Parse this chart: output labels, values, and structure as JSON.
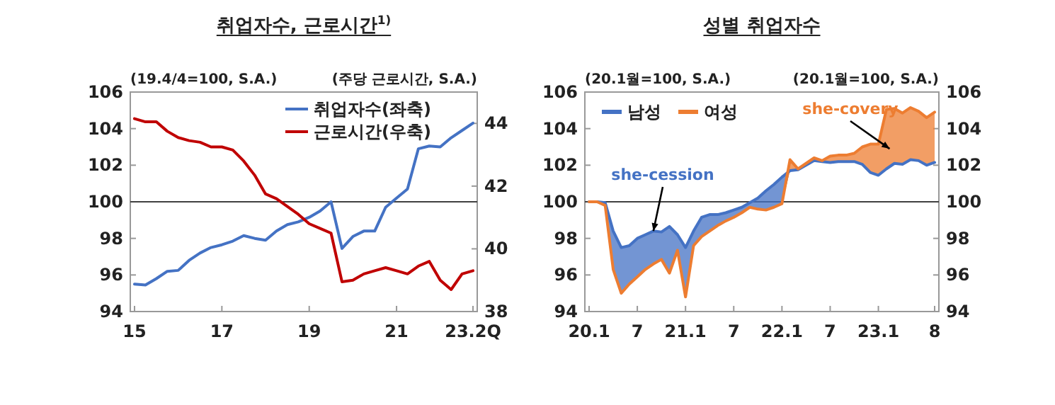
{
  "chart_data": [
    {
      "type": "line",
      "title": "취업자수, 근로시간$^{1)}$",
      "ylabel": "(19.4/4=100, S.A.)",
      "y2label": "(주당 근로시간, S.A.)",
      "categories": [
        "15",
        null,
        null,
        null,
        null,
        null,
        null,
        null,
        "17",
        null,
        null,
        null,
        null,
        null,
        null,
        null,
        "19",
        null,
        null,
        null,
        null,
        null,
        null,
        null,
        "21",
        null,
        null,
        null,
        null,
        null,
        null,
        "23.2Q"
      ],
      "ylim": [
        94,
        106
      ],
      "yticks": [
        94,
        96,
        98,
        100,
        102,
        104,
        106
      ],
      "y2lim": [
        38,
        45
      ],
      "y2ticks": [
        38,
        40,
        42,
        44
      ],
      "ref_lines": [
        {
          "axis": "y",
          "value": 100,
          "color": "#404040"
        }
      ],
      "legend": "top",
      "grid": false,
      "series": [
        {
          "name": "취업자수(좌축)",
          "color": "#4472c4",
          "values": [
            95.5,
            95.45,
            95.8,
            96.2,
            96.25,
            96.8,
            97.2,
            97.5,
            97.65,
            97.85,
            98.15,
            98.0,
            97.9,
            98.4,
            98.75,
            98.9,
            99.15,
            99.5,
            100.0,
            97.45,
            98.1,
            98.4,
            98.4,
            99.7,
            100.2,
            100.7,
            102.9,
            103.05,
            103.0,
            103.5,
            103.9,
            104.3
          ]
        },
        {
          "name": "근로시간(우축)",
          "color": "#c00000",
          "axis": "y2",
          "values": [
            44.15,
            44.05,
            44.05,
            43.75,
            43.55,
            43.45,
            43.4,
            43.25,
            43.25,
            43.15,
            42.8,
            42.35,
            41.75,
            41.6,
            41.35,
            41.1,
            40.8,
            40.65,
            40.5,
            38.95,
            39.0,
            39.2,
            39.3,
            39.4,
            39.3,
            39.2,
            39.45,
            39.6,
            39.0,
            38.7,
            39.2,
            39.3
          ]
        }
      ]
    },
    {
      "type": "line",
      "title": "성별 취업자수",
      "ylabel": "(20.1월=100, S.A.)",
      "y2label": "(20.1월=100, S.A.)",
      "categories": [
        "20.1",
        null,
        null,
        null,
        null,
        null,
        "7",
        null,
        null,
        null,
        null,
        null,
        "21.1",
        null,
        null,
        null,
        null,
        null,
        "7",
        null,
        null,
        null,
        null,
        null,
        "22.1",
        null,
        null,
        null,
        null,
        null,
        "7",
        null,
        null,
        null,
        null,
        null,
        "23.1",
        null,
        null,
        null,
        null,
        null,
        null,
        "8"
      ],
      "ylim": [
        94,
        106
      ],
      "yticks": [
        94,
        96,
        98,
        100,
        102,
        104,
        106
      ],
      "y2lim": [
        94,
        106
      ],
      "y2ticks": [
        94,
        96,
        98,
        100,
        102,
        104,
        106
      ],
      "ref_lines": [
        {
          "axis": "y",
          "value": 100,
          "color": "#404040"
        }
      ],
      "legend": "top left",
      "grid": false,
      "annotations": [
        {
          "text": "she-cession",
          "y": 98.4
        },
        {
          "text": "she-covery",
          "y": 102.9
        }
      ],
      "series": [
        {
          "name": "남성",
          "color": "#4472c4",
          "values": [
            100.0,
            100.0,
            99.95,
            98.4,
            97.5,
            97.6,
            98.0,
            98.2,
            98.4,
            98.35,
            98.65,
            98.2,
            97.5,
            98.4,
            99.15,
            99.3,
            99.3,
            99.4,
            99.55,
            99.7,
            99.95,
            100.2,
            100.6,
            100.95,
            101.35,
            101.7,
            101.75,
            102.0,
            102.25,
            102.2,
            102.15,
            102.2,
            102.2,
            102.2,
            102.05,
            101.6,
            101.45,
            101.8,
            102.1,
            102.05,
            102.3,
            102.25,
            102.0,
            102.15
          ],
          "lower": [
            100.0,
            100.0,
            99.8,
            96.3,
            95.0,
            95.5,
            95.9,
            96.3,
            96.6,
            96.85,
            96.1,
            97.35,
            94.8,
            97.6,
            98.1,
            98.4,
            98.7,
            98.95,
            99.15,
            99.4,
            99.7,
            99.6,
            99.55,
            99.7,
            99.9,
            101.7,
            101.75,
            102.0,
            102.25,
            102.2,
            102.15,
            102.2,
            102.2,
            102.2,
            102.05,
            101.6,
            101.45,
            101.8,
            102.1,
            102.05,
            102.3,
            102.25,
            102.0,
            102.15
          ],
          "upper": [
            100.0,
            100.0,
            99.95,
            98.4,
            97.5,
            97.6,
            98.0,
            98.2,
            98.4,
            98.35,
            98.65,
            98.2,
            97.5,
            98.4,
            99.15,
            99.3,
            99.3,
            99.4,
            99.55,
            99.7,
            99.95,
            100.2,
            100.6,
            100.95,
            101.35,
            101.7,
            101.75,
            102.0,
            102.25,
            102.2,
            102.15,
            102.2,
            102.2,
            102.2,
            102.05,
            101.6,
            101.45,
            101.8,
            102.1,
            102.05,
            102.3,
            102.25,
            102.0,
            102.15
          ]
        },
        {
          "name": "여성",
          "color": "#ed7d31",
          "values": [
            100.0,
            100.0,
            99.8,
            96.3,
            95.0,
            95.5,
            95.9,
            96.3,
            96.6,
            96.85,
            96.1,
            97.35,
            94.8,
            97.6,
            98.1,
            98.4,
            98.7,
            98.95,
            99.15,
            99.4,
            99.7,
            99.6,
            99.55,
            99.7,
            99.9,
            102.3,
            101.8,
            102.1,
            102.4,
            102.25,
            102.5,
            102.55,
            102.55,
            102.65,
            103.0,
            103.15,
            103.15,
            105.05,
            105.1,
            104.85,
            105.15,
            104.95,
            104.6,
            104.9
          ],
          "lower": [
            100.0,
            100.0,
            99.8,
            96.3,
            95.0,
            95.5,
            95.9,
            96.3,
            96.6,
            96.85,
            96.1,
            97.35,
            94.8,
            97.6,
            98.1,
            98.4,
            98.7,
            98.95,
            99.15,
            99.4,
            99.7,
            99.6,
            99.55,
            99.7,
            99.9,
            101.7,
            101.75,
            102.0,
            102.25,
            102.2,
            102.15,
            102.2,
            102.2,
            102.2,
            102.05,
            101.6,
            101.45,
            101.8,
            102.1,
            102.05,
            102.3,
            102.25,
            102.0,
            102.15
          ],
          "upper": [
            100.0,
            100.0,
            99.8,
            96.3,
            95.0,
            95.5,
            95.9,
            96.3,
            96.6,
            96.85,
            96.1,
            97.35,
            94.8,
            97.6,
            98.1,
            98.4,
            98.7,
            98.95,
            99.15,
            99.4,
            99.7,
            99.6,
            99.55,
            99.7,
            99.9,
            102.3,
            101.8,
            102.1,
            102.4,
            102.25,
            102.5,
            102.55,
            102.55,
            102.65,
            103.0,
            103.15,
            103.15,
            105.05,
            105.1,
            104.85,
            105.15,
            104.95,
            104.6,
            104.9
          ]
        }
      ]
    }
  ]
}
